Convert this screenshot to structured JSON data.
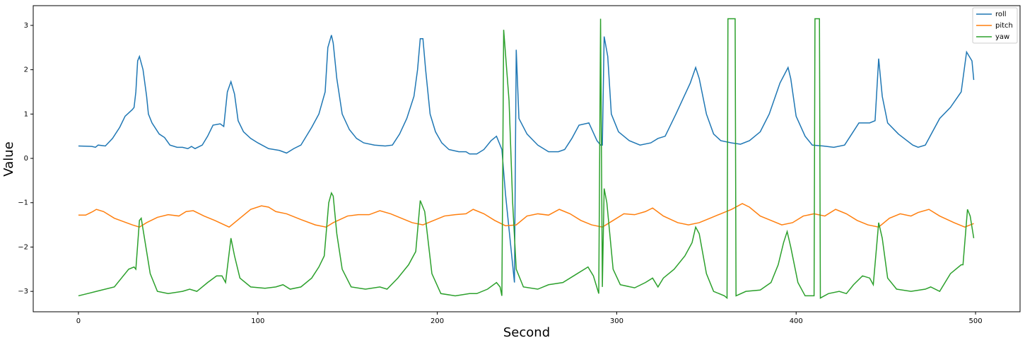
{
  "chart_data": {
    "type": "line",
    "xlabel": "Second",
    "ylabel": "Value",
    "xlim": [
      -25.2,
      524.8
    ],
    "ylim": [
      -3.46,
      3.445
    ],
    "xticks": [
      0,
      100,
      200,
      300,
      400,
      500
    ],
    "yticks": [
      {
        "value": -3,
        "label": "−3"
      },
      {
        "value": -2,
        "label": "−2"
      },
      {
        "value": -1,
        "label": "−1"
      },
      0,
      1,
      2,
      3
    ],
    "legend": "upper right",
    "series": [
      {
        "name": "roll",
        "color": "#1f77b4",
        "x": [
          0,
          7.5,
          9.5,
          11,
          15,
          19,
          23,
          26,
          30,
          31,
          32,
          33,
          34,
          36,
          38,
          39,
          41,
          45,
          48,
          51,
          55,
          58,
          61,
          63,
          65,
          69,
          72,
          75,
          79,
          81,
          83,
          85,
          87,
          89,
          92,
          96,
          100,
          106,
          112,
          116,
          120,
          124,
          130,
          134,
          137.5,
          139,
          141,
          142,
          144,
          147,
          151,
          155,
          159,
          165,
          171,
          175,
          179,
          183,
          187,
          189,
          190.5,
          192,
          193.5,
          196,
          199,
          202.5,
          206.5,
          212,
          216,
          218,
          222,
          226,
          230,
          233,
          236,
          238,
          241,
          243,
          244,
          245.5,
          250,
          256,
          262,
          267.5,
          271,
          275,
          279,
          284.5,
          289,
          291,
          292,
          293,
          295,
          297,
          301,
          307,
          313,
          319,
          323,
          327,
          333,
          337,
          341,
          344,
          346,
          350,
          354,
          358,
          364,
          369,
          374,
          380,
          385,
          391,
          395.5,
          397,
          400,
          405,
          409,
          415,
          421,
          427,
          431,
          435,
          441,
          444,
          446,
          448,
          451,
          457,
          465,
          468,
          472,
          476,
          480,
          486,
          492,
          495,
          498,
          499
        ],
        "values": [
          0.28,
          0.27,
          0.25,
          0.3,
          0.28,
          0.45,
          0.7,
          0.95,
          1.1,
          1.15,
          1.5,
          2.2,
          2.3,
          2.0,
          1.4,
          1.0,
          0.8,
          0.55,
          0.47,
          0.3,
          0.25,
          0.25,
          0.22,
          0.27,
          0.22,
          0.3,
          0.5,
          0.75,
          0.78,
          0.72,
          1.5,
          1.73,
          1.45,
          0.85,
          0.6,
          0.45,
          0.35,
          0.22,
          0.18,
          0.12,
          0.22,
          0.3,
          0.7,
          1.0,
          1.5,
          2.5,
          2.78,
          2.6,
          1.8,
          1.0,
          0.65,
          0.45,
          0.35,
          0.3,
          0.28,
          0.3,
          0.55,
          0.9,
          1.4,
          2.0,
          2.7,
          2.7,
          2.0,
          1.0,
          0.6,
          0.35,
          0.2,
          0.15,
          0.15,
          0.1,
          0.1,
          0.2,
          0.4,
          0.5,
          0.2,
          -0.8,
          -2.0,
          -2.8,
          2.45,
          0.9,
          0.55,
          0.3,
          0.15,
          0.15,
          0.2,
          0.45,
          0.75,
          0.8,
          0.4,
          0.3,
          0.3,
          2.75,
          2.3,
          1.0,
          0.6,
          0.4,
          0.3,
          0.35,
          0.45,
          0.5,
          1.0,
          1.35,
          1.7,
          2.05,
          1.8,
          1.0,
          0.55,
          0.4,
          0.35,
          0.32,
          0.4,
          0.6,
          1.0,
          1.7,
          2.05,
          1.8,
          0.95,
          0.5,
          0.3,
          0.28,
          0.25,
          0.3,
          0.55,
          0.8,
          0.8,
          0.85,
          2.25,
          1.4,
          0.8,
          0.55,
          0.3,
          0.25,
          0.3,
          0.6,
          0.9,
          1.15,
          1.5,
          2.4,
          2.2,
          1.77
        ]
      },
      {
        "name": "pitch",
        "color": "#ff7f0e",
        "x": [
          0,
          4,
          8,
          10,
          14,
          20,
          30,
          34,
          38,
          44,
          50,
          56,
          60,
          64,
          70,
          76,
          84,
          90,
          96,
          102,
          106,
          110,
          116,
          124,
          132,
          138,
          142,
          150,
          156,
          162,
          168,
          174,
          180,
          186,
          192,
          198,
          204,
          210,
          216,
          220,
          226,
          232,
          238,
          244,
          250,
          256,
          262,
          268,
          274,
          280,
          286,
          292,
          298,
          304,
          310,
          316,
          320,
          326,
          334,
          340,
          346,
          352,
          358,
          364,
          370,
          374,
          380,
          386,
          392,
          398,
          404,
          410,
          416,
          422,
          428,
          434,
          440,
          446,
          452,
          458,
          464,
          468,
          474,
          480,
          488,
          494,
          499
        ],
        "values": [
          -1.28,
          -1.28,
          -1.2,
          -1.15,
          -1.2,
          -1.35,
          -1.5,
          -1.55,
          -1.45,
          -1.33,
          -1.27,
          -1.3,
          -1.2,
          -1.18,
          -1.3,
          -1.4,
          -1.55,
          -1.35,
          -1.15,
          -1.07,
          -1.1,
          -1.2,
          -1.25,
          -1.38,
          -1.5,
          -1.55,
          -1.45,
          -1.3,
          -1.27,
          -1.27,
          -1.18,
          -1.25,
          -1.35,
          -1.45,
          -1.5,
          -1.4,
          -1.3,
          -1.27,
          -1.25,
          -1.15,
          -1.25,
          -1.4,
          -1.52,
          -1.5,
          -1.3,
          -1.25,
          -1.28,
          -1.15,
          -1.25,
          -1.4,
          -1.5,
          -1.55,
          -1.4,
          -1.25,
          -1.27,
          -1.2,
          -1.12,
          -1.3,
          -1.45,
          -1.5,
          -1.45,
          -1.35,
          -1.25,
          -1.15,
          -1.02,
          -1.1,
          -1.3,
          -1.4,
          -1.5,
          -1.45,
          -1.3,
          -1.25,
          -1.3,
          -1.15,
          -1.25,
          -1.4,
          -1.5,
          -1.55,
          -1.35,
          -1.25,
          -1.3,
          -1.22,
          -1.15,
          -1.3,
          -1.45,
          -1.55,
          -1.47
        ]
      },
      {
        "name": "yaw",
        "color": "#2ca02c",
        "x": [
          0,
          10,
          20,
          28,
          31,
          32,
          34,
          35,
          36,
          40,
          44,
          50,
          58,
          62,
          66,
          72,
          77,
          80,
          82,
          85,
          87,
          90,
          96,
          104,
          110,
          114,
          118,
          124,
          130,
          134,
          137,
          139.5,
          141,
          142,
          144,
          147,
          152,
          160,
          168,
          172,
          178,
          184,
          188,
          190.5,
          193,
          197,
          202,
          210,
          218,
          222,
          228,
          233,
          235,
          236,
          237,
          240,
          242,
          244,
          248,
          256,
          262,
          270,
          278,
          284,
          287,
          290,
          291,
          292,
          293,
          294.5,
          298,
          302,
          310,
          316,
          320,
          323,
          326,
          332,
          338,
          342,
          344,
          346,
          350,
          354,
          360,
          361.5,
          362,
          366,
          366.5,
          372,
          380,
          386,
          390,
          393,
          395,
          397,
          401,
          405,
          410,
          410.5,
          413,
          413.5,
          418,
          424,
          428,
          432,
          437,
          441,
          443,
          446,
          448,
          451,
          456,
          464,
          472,
          475,
          480,
          486,
          492,
          493,
          495.5,
          497,
          499
        ],
        "values": [
          -3.1,
          -3.0,
          -2.9,
          -2.5,
          -2.45,
          -2.5,
          -1.4,
          -1.35,
          -1.6,
          -2.6,
          -3.0,
          -3.05,
          -3.0,
          -2.95,
          -3.0,
          -2.8,
          -2.65,
          -2.65,
          -2.8,
          -1.8,
          -2.2,
          -2.7,
          -2.9,
          -2.93,
          -2.9,
          -2.85,
          -2.95,
          -2.9,
          -2.7,
          -2.45,
          -2.2,
          -1.0,
          -0.78,
          -0.85,
          -1.7,
          -2.5,
          -2.9,
          -2.95,
          -2.9,
          -2.95,
          -2.7,
          -2.4,
          -2.1,
          -0.95,
          -1.2,
          -2.6,
          -3.05,
          -3.1,
          -3.05,
          -3.05,
          -2.95,
          -2.8,
          -2.9,
          -3.1,
          2.9,
          1.3,
          -1.0,
          -2.5,
          -2.9,
          -2.95,
          -2.85,
          -2.8,
          -2.6,
          -2.45,
          -2.65,
          -3.05,
          3.15,
          -2.9,
          -0.68,
          -1.0,
          -2.5,
          -2.85,
          -2.92,
          -2.8,
          -2.7,
          -2.9,
          -2.7,
          -2.5,
          -2.2,
          -1.9,
          -1.55,
          -1.7,
          -2.6,
          -3.0,
          -3.1,
          -3.15,
          3.15,
          3.15,
          -3.1,
          -3.0,
          -2.97,
          -2.8,
          -2.4,
          -1.9,
          -1.65,
          -2.0,
          -2.8,
          -3.1,
          -3.1,
          3.15,
          3.15,
          -3.15,
          -3.05,
          -3.0,
          -3.05,
          -2.85,
          -2.65,
          -2.7,
          -2.85,
          -1.45,
          -1.8,
          -2.7,
          -2.95,
          -3.0,
          -2.95,
          -2.9,
          -3.0,
          -2.6,
          -2.4,
          -2.4,
          -1.15,
          -1.3,
          -1.8
        ]
      }
    ]
  }
}
